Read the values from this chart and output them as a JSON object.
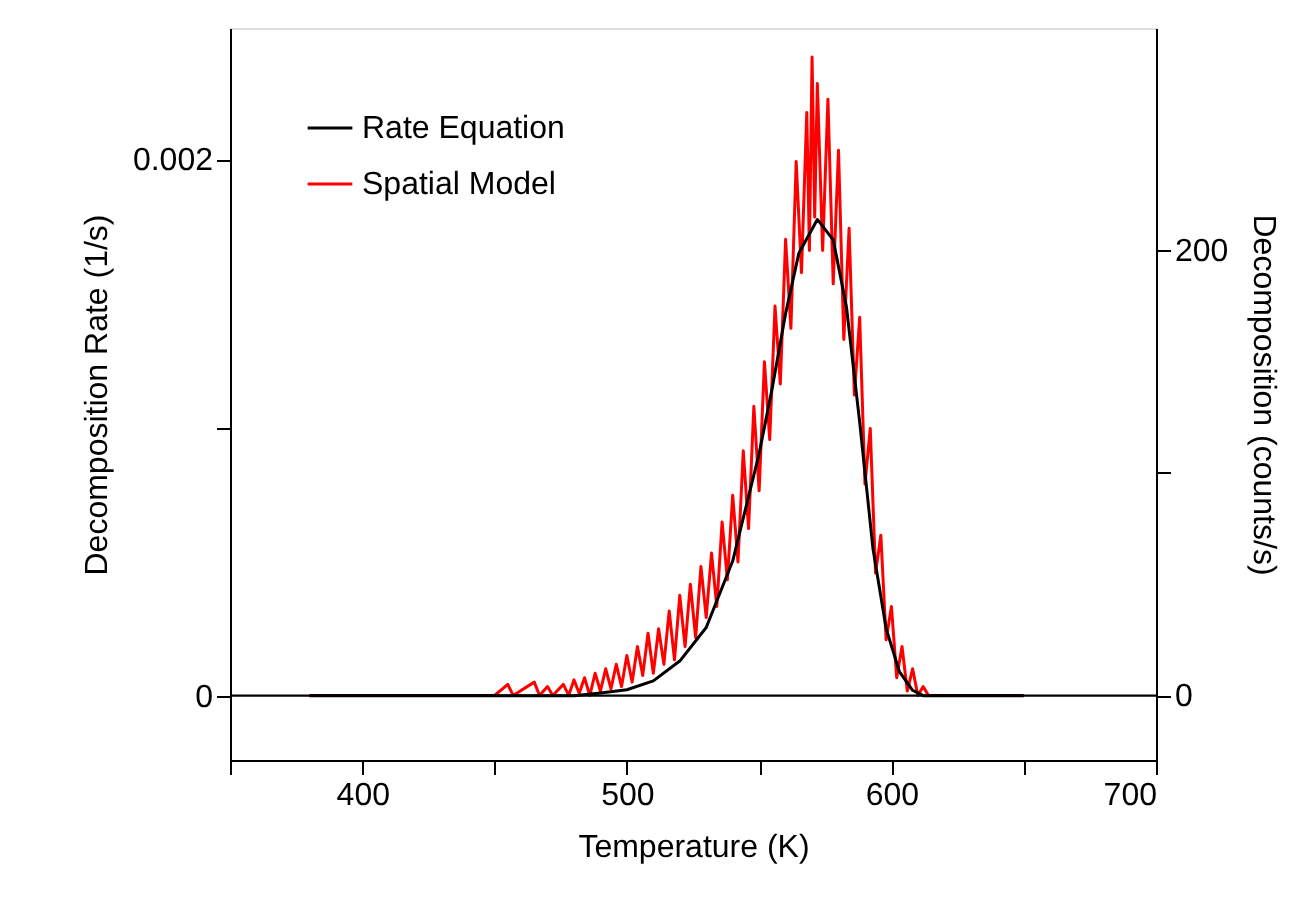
{
  "chart_data": {
    "type": "line",
    "xlabel": "Temperature (K)",
    "ylabel": "Decomposition Rate (1/s)",
    "y2label": "Decomposition (counts/s)",
    "xlim": [
      350,
      700
    ],
    "xticks": [
      {
        "value": 350,
        "label": null
      },
      400,
      {
        "value": 450,
        "label": null
      },
      500,
      {
        "value": 550,
        "label": null
      },
      600,
      {
        "value": 650,
        "label": null
      },
      700
    ],
    "ylim": [
      -0.00024,
      0.00249
    ],
    "yticks": [
      0,
      {
        "value": 0.001,
        "label": null
      },
      0.002
    ],
    "y2lim": [
      -29,
      300
    ],
    "y2ticks": [
      0,
      {
        "value": 100,
        "label": null
      },
      200
    ],
    "grid": false,
    "legend": "top left",
    "line_style": "solid",
    "marker": "none",
    "ref_lines": [
      {
        "axis": "y",
        "value": 0,
        "color": "#000000"
      }
    ],
    "series": [
      {
        "name": "Rate Equation",
        "color": "#000000",
        "axis": "y",
        "x": [
          380,
          480,
          490,
          500,
          510,
          520,
          530,
          540,
          550,
          555,
          560,
          565,
          572,
          578,
          583,
          588,
          593,
          598,
          603,
          608,
          612,
          650
        ],
        "values": [
          0,
          0,
          1e-05,
          2.2e-05,
          5.5e-05,
          0.000129,
          0.000254,
          0.000502,
          0.000903,
          0.00115,
          0.001425,
          0.00165,
          0.001776,
          0.0017,
          0.00145,
          0.00102,
          0.00055,
          0.00025,
          9e-05,
          2e-05,
          0,
          0
        ]
      },
      {
        "name": "Spatial Model",
        "color": "#ff0000",
        "axis": "y2",
        "x": [
          380,
          450,
          455,
          457,
          465,
          467,
          470,
          472,
          476,
          478,
          480,
          482,
          484,
          486,
          488,
          490,
          492,
          494,
          496,
          498,
          500,
          502,
          504,
          506,
          508,
          510,
          512,
          514,
          516,
          518,
          520,
          522,
          524,
          526,
          528,
          530,
          532,
          534,
          536,
          538,
          540,
          542,
          544,
          546,
          548,
          550,
          552,
          554,
          556,
          558,
          560,
          562,
          564,
          566,
          568,
          569,
          570,
          571,
          572,
          574,
          576,
          578,
          580,
          582,
          584,
          586,
          588,
          590,
          592,
          594,
          596,
          598,
          600,
          602,
          604,
          606,
          608,
          610,
          612,
          614,
          650
        ],
        "values": [
          0,
          0,
          5,
          0,
          6,
          0,
          4,
          0,
          5,
          0,
          7,
          1,
          8,
          0,
          10,
          2,
          12,
          3,
          14,
          4,
          18,
          6,
          22,
          9,
          28,
          10,
          30,
          14,
          38,
          16,
          45,
          22,
          50,
          26,
          58,
          35,
          64,
          40,
          78,
          52,
          90,
          60,
          110,
          75,
          130,
          92,
          150,
          115,
          175,
          140,
          205,
          165,
          240,
          190,
          262,
          200,
          287,
          215,
          275,
          200,
          268,
          185,
          245,
          160,
          210,
          135,
          170,
          95,
          120,
          55,
          72,
          25,
          40,
          8,
          22,
          2,
          12,
          0,
          4,
          0,
          0
        ]
      }
    ]
  }
}
